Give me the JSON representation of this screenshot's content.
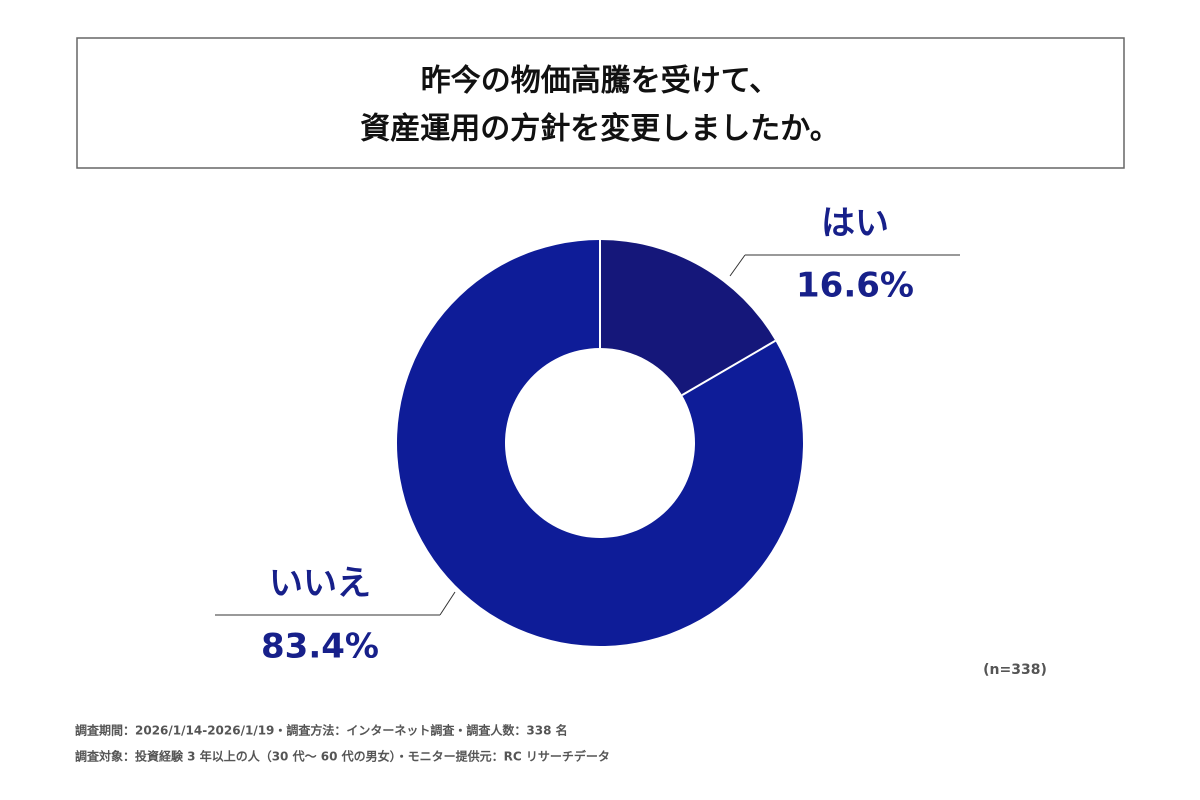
{
  "chart_data": {
    "type": "pie",
    "donut": true,
    "title": [
      "昨今の物価高騰を受けて、",
      "資産運用の方針を変更しましたか。"
    ],
    "categories": [
      "はい",
      "いいえ"
    ],
    "values": [
      16.6,
      83.4
    ],
    "value_labels": [
      "16.6%",
      "83.4%"
    ],
    "colors": [
      "#15177a",
      "#0e1c98"
    ],
    "note": "(n=338)",
    "footnotes": [
      "調査期間：2026/1/14-2026/1/19・調査方法：インターネット調査・調査人数：338 名",
      "調査対象：投資経験 3 年以上の人（30 代〜 60 代の男女）・モニター提供元：RC リサーチデータ"
    ]
  }
}
